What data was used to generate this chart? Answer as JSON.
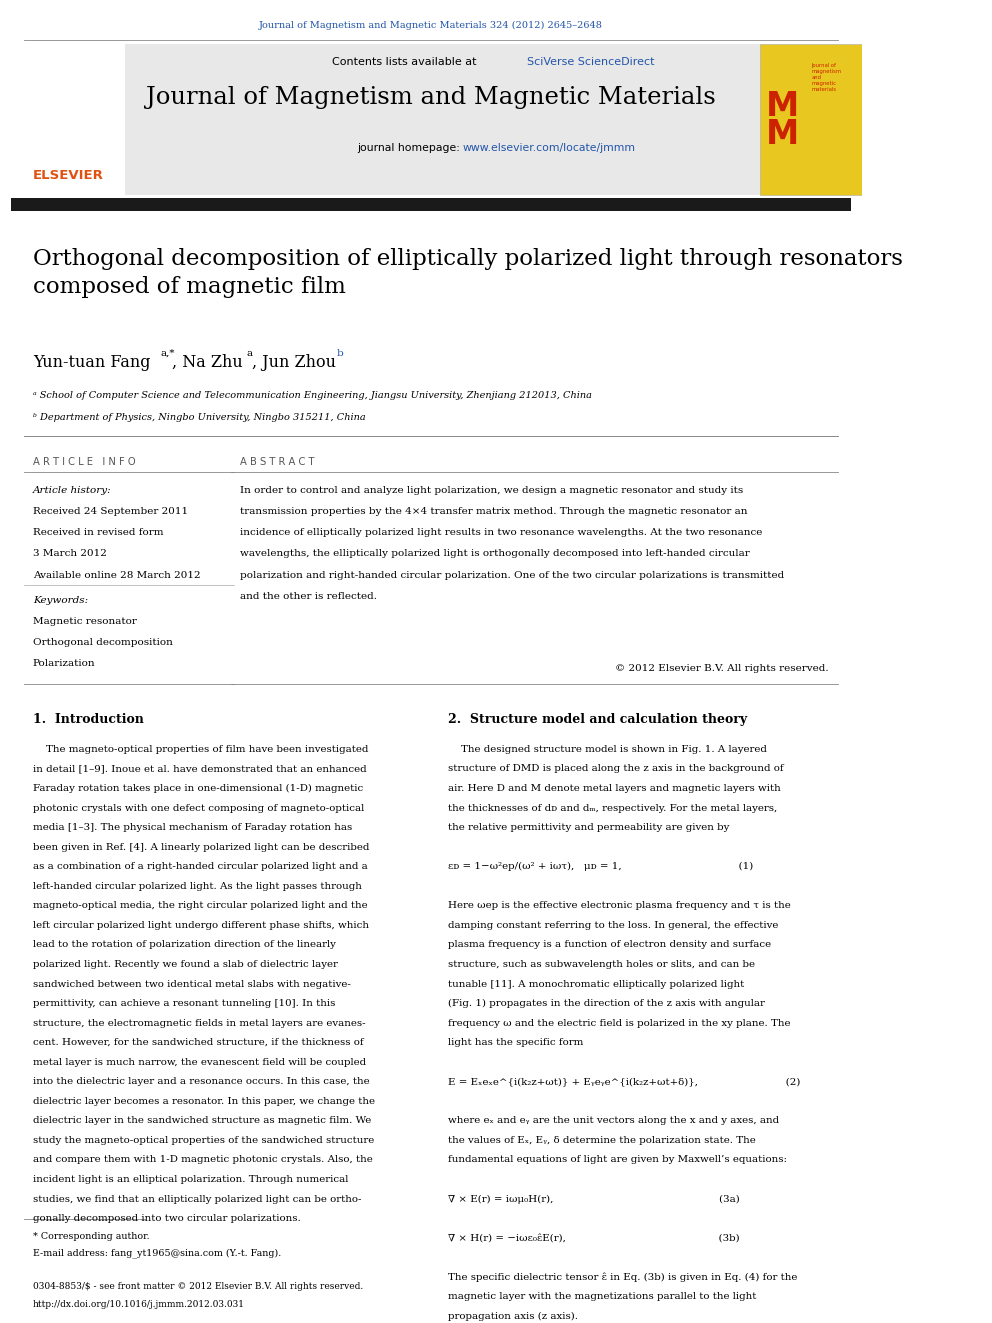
{
  "page_width": 9.92,
  "page_height": 13.23,
  "bg_color": "#ffffff",
  "top_journal_ref": "Journal of Magnetism and Magnetic Materials 324 (2012) 2645–2648",
  "top_journal_ref_color": "#2255aa",
  "header_bg": "#e8e8e8",
  "header_contents": "Contents lists available at",
  "header_sciverse": "SciVerse ScienceDirect",
  "header_journal_title": "Journal of Magnetism and Magnetic Materials",
  "header_homepage_label": "journal homepage:",
  "header_homepage_url": "www.elsevier.com/locate/jmmm",
  "header_url_color": "#2255aa",
  "black_bar_color": "#1a1a1a",
  "article_title": "Orthogonal decomposition of elliptically polarized light through resonators\ncomposed of magnetic film",
  "authors": "Yun-tuan Fang",
  "affil_a": "ᵃ School of Computer Science and Telecommunication Engineering, Jiangsu University, Zhenjiang 212013, China",
  "affil_b": "ᵇ Department of Physics, Ningbo University, Ningbo 315211, China",
  "section_article_info": "A R T I C L E   I N F O",
  "section_abstract": "A B S T R A C T",
  "article_history_label": "Article history:",
  "received1": "Received 24 September 2011",
  "received2": "Received in revised form",
  "received3": "3 March 2012",
  "available": "Available online 28 March 2012",
  "keywords_label": "Keywords:",
  "keyword1": "Magnetic resonator",
  "keyword2": "Orthogonal decomposition",
  "keyword3": "Polarization",
  "abstract_text": "In order to control and analyze light polarization, we design a magnetic resonator and study its\ntransmission properties by the 4×4 transfer matrix method. Through the magnetic resonator an\nincidence of elliptically polarized light results in two resonance wavelengths. At the two resonance\nwavelengths, the elliptically polarized light is orthogonally decomposed into left-handed circular\npolarization and right-handed circular polarization. One of the two circular polarizations is transmitted\nand the other is reflected.",
  "copyright": "© 2012 Elsevier B.V. All rights reserved.",
  "sec1_title": "1.  Introduction",
  "sec1_text": [
    "    The magneto-optical properties of film have been investigated",
    "in detail [1–9]. Inoue et al. have demonstrated that an enhanced",
    "Faraday rotation takes place in one-dimensional (1-D) magnetic",
    "photonic crystals with one defect composing of magneto-optical",
    "media [1–3]. The physical mechanism of Faraday rotation has",
    "been given in Ref. [4]. A linearly polarized light can be described",
    "as a combination of a right-handed circular polarized light and a",
    "left-handed circular polarized light. As the light passes through",
    "magneto-optical media, the right circular polarized light and the",
    "left circular polarized light undergo different phase shifts, which",
    "lead to the rotation of polarization direction of the linearly",
    "polarized light. Recently we found a slab of dielectric layer",
    "sandwiched between two identical metal slabs with negative-",
    "permittivity, can achieve a resonant tunneling [10]. In this",
    "structure, the electromagnetic fields in metal layers are evanes-",
    "cent. However, for the sandwiched structure, if the thickness of",
    "metal layer is much narrow, the evanescent field will be coupled",
    "into the dielectric layer and a resonance occurs. In this case, the",
    "dielectric layer becomes a resonator. In this paper, we change the",
    "dielectric layer in the sandwiched structure as magnetic film. We",
    "study the magneto-optical properties of the sandwiched structure",
    "and compare them with 1-D magnetic photonic crystals. Also, the",
    "incident light is an elliptical polarization. Through numerical",
    "studies, we find that an elliptically polarized light can be ortho-",
    "gonally decomposed into two circular polarizations."
  ],
  "sec2_title": "2.  Structure model and calculation theory",
  "sec2_text": [
    "    The designed structure model is shown in Fig. 1. A layered",
    "structure of DMD is placed along the z axis in the background of",
    "air. Here D and M denote metal layers and magnetic layers with",
    "the thicknesses of dᴅ and dₘ, respectively. For the metal layers,",
    "the relative permittivity and permeability are given by",
    "",
    "εᴅ = 1−ω²ep/(ω² + iωτ),   μᴅ = 1,                                    (1)",
    "",
    "Here ωep is the effective electronic plasma frequency and τ is the",
    "damping constant referring to the loss. In general, the effective",
    "plasma frequency is a function of electron density and surface",
    "structure, such as subwavelength holes or slits, and can be",
    "tunable [11]. A monochromatic elliptically polarized light",
    "(Fig. 1) propagates in the direction of the z axis with angular",
    "frequency ω and the electric field is polarized in the xy plane. The",
    "light has the specific form",
    "",
    "E = Eₓeₓe^{i(k₂z+ωt)} + Eᵧeᵧe^{i(k₂z+ωt+δ)},                           (2)",
    "",
    "where eₓ and eᵧ are the unit vectors along the x and y axes, and",
    "the values of Eₓ, Eᵧ, δ determine the polarization state. The",
    "fundamental equations of light are given by Maxwell’s equations:",
    "",
    "∇ × E(r) = iωμ₀H(r),                                                   (3a)",
    "",
    "∇ × H(r) = −iωε₀ε̂E(r),                                               (3b)",
    "",
    "The specific dielectric tensor ε̂ in Eq. (3b) is given in Eq. (4) for the",
    "magnetic layer with the magnetizations parallel to the light",
    "propagation axis (z axis)."
  ],
  "footnote_star": "* Corresponding author.",
  "footnote_email": "E-mail address: fang_yt1965@sina.com (Y.-t. Fang).",
  "footer_issn": "0304-8853/$ - see front matter © 2012 Elsevier B.V. All rights reserved.",
  "footer_doi": "http://dx.doi.org/10.1016/j.jmmm.2012.03.031",
  "link_color": "#2255aa",
  "text_color": "#000000",
  "gray_text": "#555555"
}
